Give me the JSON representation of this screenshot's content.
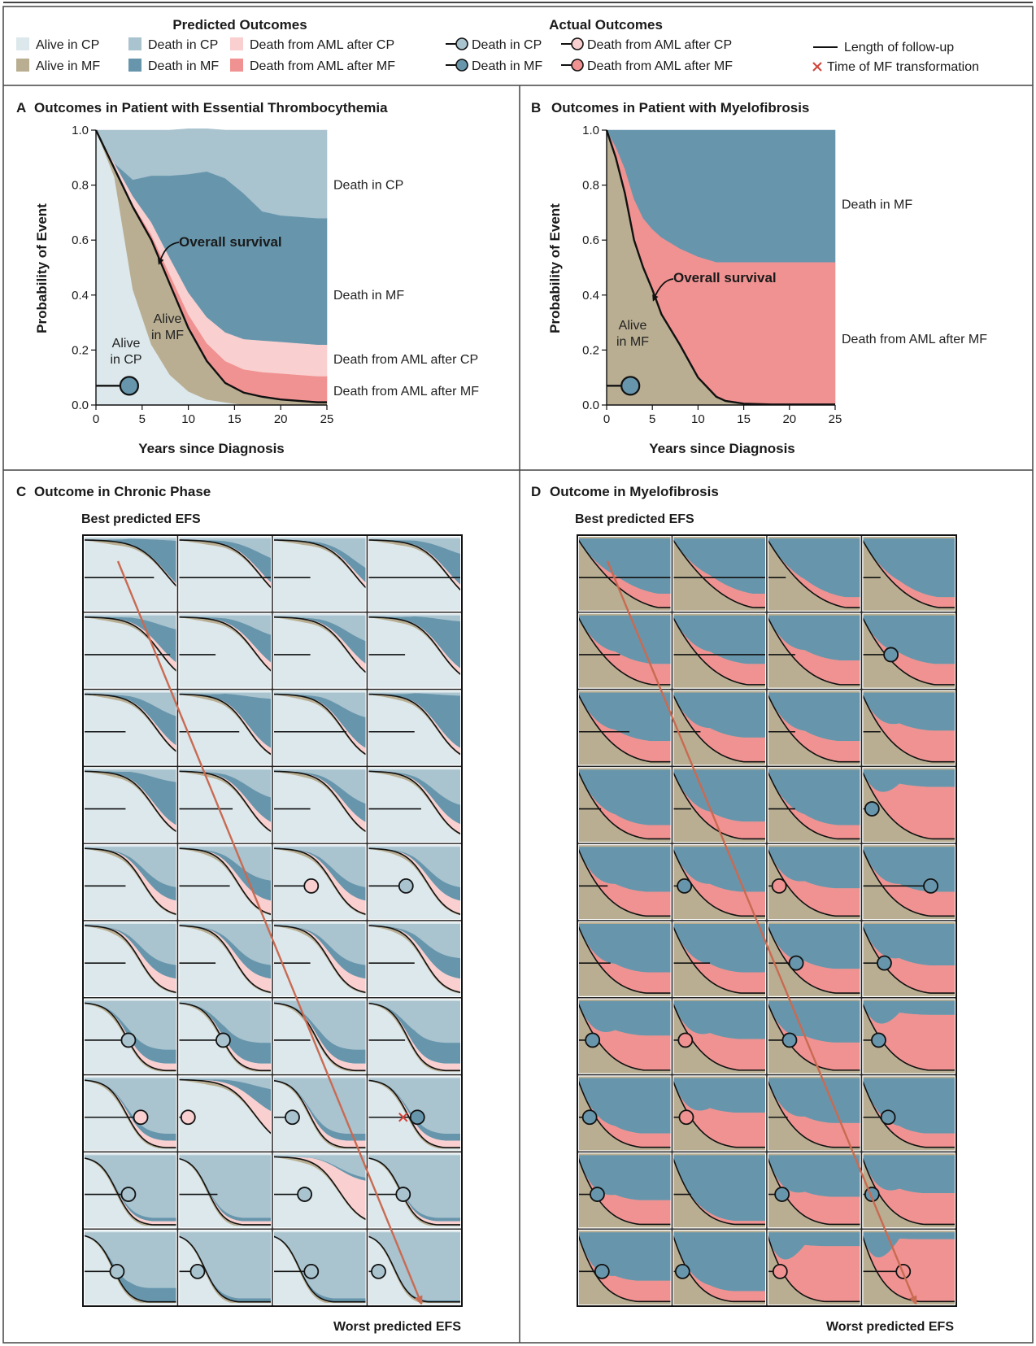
{
  "colors": {
    "alive_cp": "#dce8ec",
    "death_cp": "#a9c3cf",
    "death_aml_cp": "#f9cfcf",
    "alive_mf": "#b9ae92",
    "death_mf": "#6796ac",
    "death_aml_mf": "#f09291",
    "line": "#111111",
    "arrow": "#c96a52",
    "mf_x": "#d0443a"
  },
  "legend": {
    "predicted_title": "Predicted Outcomes",
    "actual_title": "Actual Outcomes",
    "predicted_items": [
      {
        "label": "Alive in CP",
        "key": "alive_cp"
      },
      {
        "label": "Death in CP",
        "key": "death_cp"
      },
      {
        "label": "Death from AML after CP",
        "key": "death_aml_cp"
      },
      {
        "label": "Alive in MF",
        "key": "alive_mf"
      },
      {
        "label": "Death in MF",
        "key": "death_mf"
      },
      {
        "label": "Death from AML after MF",
        "key": "death_aml_mf"
      }
    ],
    "actual_items": [
      {
        "label": "Death in CP",
        "key": "death_cp"
      },
      {
        "label": "Death from AML after CP",
        "key": "death_aml_cp"
      },
      {
        "label": "Death in MF",
        "key": "death_mf"
      },
      {
        "label": "Death from AML after MF",
        "key": "death_aml_mf"
      }
    ],
    "followup_label": "Length of follow-up",
    "mf_time_label": "Time of MF transformation"
  },
  "panels": {
    "A": {
      "letter": "A",
      "title": "Outcomes in Patient with Essential Thrombocythemia"
    },
    "B": {
      "letter": "B",
      "title": "Outcomes in Patient with Myelofibrosis"
    },
    "C": {
      "letter": "C",
      "title": "Outcome in Chronic Phase",
      "best": "Best predicted EFS",
      "worst": "Worst predicted EFS"
    },
    "D": {
      "letter": "D",
      "title": "Outcome in Myelofibrosis",
      "best": "Best predicted EFS",
      "worst": "Worst predicted EFS"
    }
  },
  "chart_data": [
    {
      "id": "A",
      "type": "area",
      "title": "Outcomes in Patient with Essential Thrombocythemia",
      "xlabel": "Years since Diagnosis",
      "ylabel": "Probability of Event",
      "xlim": [
        0,
        25
      ],
      "ylim": [
        0,
        1
      ],
      "xticks": [
        "0",
        "5",
        "10",
        "15",
        "20",
        "25"
      ],
      "yticks": [
        "0.0",
        "0.2",
        "0.4",
        "0.6",
        "0.8",
        "1.0"
      ],
      "x": [
        0,
        2,
        4,
        6,
        8,
        10,
        12,
        14,
        16,
        18,
        20,
        22,
        24,
        25
      ],
      "series": [
        {
          "name": "Alive in CP",
          "key": "alive_cp",
          "values": [
            1.0,
            0.83,
            0.42,
            0.22,
            0.11,
            0.05,
            0.02,
            0.01,
            0.0,
            0.0,
            0.0,
            0.0,
            0.0,
            0.0
          ]
        },
        {
          "name": "Alive in MF",
          "key": "alive_mf",
          "values": [
            0.0,
            0.03,
            0.3,
            0.38,
            0.33,
            0.23,
            0.14,
            0.07,
            0.045,
            0.03,
            0.02,
            0.015,
            0.01,
            0.01
          ]
        },
        {
          "name": "Death from AML after MF",
          "key": "death_aml_mf",
          "values": [
            0.0,
            0.005,
            0.01,
            0.02,
            0.035,
            0.05,
            0.065,
            0.08,
            0.085,
            0.09,
            0.095,
            0.095,
            0.095,
            0.095
          ]
        },
        {
          "name": "Death from AML after CP",
          "key": "death_aml_cp",
          "values": [
            0.0,
            0.015,
            0.03,
            0.045,
            0.06,
            0.08,
            0.095,
            0.105,
            0.11,
            0.115,
            0.115,
            0.115,
            0.115,
            0.115
          ]
        },
        {
          "name": "Death in MF",
          "key": "death_mf",
          "values": [
            0.0,
            0.0,
            0.06,
            0.17,
            0.3,
            0.43,
            0.53,
            0.56,
            0.53,
            0.47,
            0.46,
            0.46,
            0.46,
            0.46
          ]
        },
        {
          "name": "Death in CP",
          "key": "death_cp",
          "values": [
            0.0,
            0.12,
            0.18,
            0.165,
            0.165,
            0.165,
            0.155,
            0.175,
            0.23,
            0.295,
            0.31,
            0.315,
            0.32,
            0.32
          ]
        }
      ],
      "overall_survival": [
        1.0,
        0.86,
        0.72,
        0.6,
        0.44,
        0.28,
        0.16,
        0.08,
        0.045,
        0.03,
        0.02,
        0.015,
        0.01,
        0.01
      ],
      "labels": {
        "overall": "Overall survival",
        "alive_mf": [
          "Alive",
          "in MF"
        ],
        "alive_cp": [
          "Alive",
          "in CP"
        ]
      },
      "right_labels": [
        "Death in CP",
        "Death in MF",
        "Death from AML after CP",
        "Death from AML after MF"
      ],
      "patient": {
        "followup_years": 3.6,
        "event_year": 3.6,
        "event": "death_mf"
      }
    },
    {
      "id": "B",
      "type": "area",
      "title": "Outcomes in Patient with Myelofibrosis",
      "xlabel": "Years since Diagnosis",
      "ylabel": "Probability of Event",
      "xlim": [
        0,
        25
      ],
      "ylim": [
        0,
        1
      ],
      "xticks": [
        "0",
        "5",
        "10",
        "15",
        "20",
        "25"
      ],
      "yticks": [
        "0.0",
        "0.2",
        "0.4",
        "0.6",
        "0.8",
        "1.0"
      ],
      "x": [
        0,
        1,
        2,
        3,
        4,
        5,
        6,
        8,
        10,
        12,
        13,
        15,
        18,
        25
      ],
      "series": [
        {
          "name": "Alive in MF",
          "key": "alive_mf",
          "values": [
            1.0,
            0.9,
            0.77,
            0.6,
            0.5,
            0.42,
            0.33,
            0.22,
            0.1,
            0.03,
            0.015,
            0.005,
            0.002,
            0.002
          ]
        },
        {
          "name": "Death from AML after MF",
          "key": "death_aml_mf",
          "values": [
            0.0,
            0.04,
            0.09,
            0.15,
            0.18,
            0.22,
            0.28,
            0.35,
            0.44,
            0.49,
            0.505,
            0.515,
            0.518,
            0.518
          ]
        },
        {
          "name": "Death in MF",
          "key": "death_mf",
          "values": [
            0.0,
            0.06,
            0.14,
            0.25,
            0.32,
            0.36,
            0.39,
            0.43,
            0.46,
            0.48,
            0.48,
            0.48,
            0.48,
            0.48
          ]
        }
      ],
      "overall_survival": [
        1.0,
        0.9,
        0.77,
        0.6,
        0.5,
        0.42,
        0.33,
        0.22,
        0.1,
        0.03,
        0.015,
        0.005,
        0.002,
        0.002
      ],
      "labels": {
        "overall": "Overall survival",
        "alive_mf": [
          "Alive",
          "in MF"
        ]
      },
      "right_labels": [
        "Death in MF",
        "Death from AML after MF"
      ],
      "patient": {
        "followup_years": 2.6,
        "event_year": 2.6,
        "event": "death_mf"
      }
    },
    {
      "id": "C",
      "type": "area",
      "title": "Outcome in Chronic Phase",
      "layout": "small multiples 4 columns x 10 rows, ordered from best to worst predicted EFS",
      "rows": [
        [
          {
            "s": 0.1,
            "m": 0.9,
            "a": 0.05,
            "f": 0.75
          },
          {
            "s": 0.12,
            "m": 0.5,
            "a": 0.1,
            "f": 1.0
          },
          {
            "s": 0.12,
            "m": 0.3,
            "a": 0.1,
            "f": 0.4
          },
          {
            "s": 0.15,
            "m": 0.6,
            "a": 0.1,
            "f": 1.0
          }
        ],
        [
          {
            "s": 0.2,
            "m": 0.6,
            "a": 0.15,
            "f": 0.92
          },
          {
            "s": 0.2,
            "m": 0.5,
            "a": 0.15,
            "f": 0.4
          },
          {
            "s": 0.22,
            "m": 0.4,
            "a": 0.15,
            "f": 0.4
          },
          {
            "s": 0.25,
            "m": 0.8,
            "a": 0.1,
            "f": 0.4
          }
        ],
        [
          {
            "s": 0.25,
            "m": 0.5,
            "a": 0.1,
            "f": 0.45
          },
          {
            "s": 0.3,
            "m": 0.8,
            "a": 0.1,
            "f": 0.65
          },
          {
            "s": 0.3,
            "m": 0.5,
            "a": 0.1,
            "f": 0.78
          },
          {
            "s": 0.3,
            "m": 0.85,
            "a": 0.1,
            "f": 0.5
          }
        ],
        [
          {
            "s": 0.3,
            "m": 0.7,
            "a": 0.1,
            "f": 0.45
          },
          {
            "s": 0.3,
            "m": 0.4,
            "a": 0.15,
            "f": 0.58
          },
          {
            "s": 0.3,
            "m": 0.3,
            "a": 0.15,
            "f": 0.4
          },
          {
            "s": 0.35,
            "m": 0.3,
            "a": 0.15,
            "f": 0.57
          }
        ],
        [
          {
            "s": 0.45,
            "m": 0.2,
            "a": 0.2,
            "f": 0.45
          },
          {
            "s": 0.45,
            "m": 0.3,
            "a": 0.2,
            "f": 0.55
          },
          {
            "s": 0.45,
            "m": 0.2,
            "a": 0.2,
            "e": "aml_cp",
            "ex": 0.35
          },
          {
            "s": 0.45,
            "m": 0.2,
            "a": 0.2,
            "e": "cp",
            "ex": 0.35
          }
        ],
        [
          {
            "s": 0.5,
            "m": 0.2,
            "a": 0.2,
            "f": 0.45
          },
          {
            "s": 0.5,
            "m": 0.2,
            "a": 0.2,
            "f": 0.4
          },
          {
            "s": 0.5,
            "m": 0.2,
            "a": 0.2,
            "f": 0.4
          },
          {
            "s": 0.5,
            "m": 0.3,
            "a": 0.2,
            "f": 0.5
          }
        ],
        [
          {
            "s": 0.7,
            "m": 0.2,
            "a": 0.1,
            "e": "cp",
            "ex": 0.42
          },
          {
            "s": 0.7,
            "m": 0.3,
            "a": 0.1,
            "e": "cp",
            "ex": 0.42
          },
          {
            "s": 0.7,
            "m": 0.2,
            "a": 0.1,
            "f": 0.4
          },
          {
            "s": 0.75,
            "m": 0.3,
            "a": 0.1,
            "f": 0.4
          }
        ],
        [
          {
            "s": 0.7,
            "m": 0.1,
            "a": 0.1,
            "e": "aml_cp",
            "ex": 0.55
          },
          {
            "s": 0.2,
            "m": 0.4,
            "a": 0.4,
            "e": "aml_cp",
            "ex": 0.05
          },
          {
            "s": 0.8,
            "m": 0.1,
            "a": 0.1,
            "e": "cp",
            "ex": 0.15
          },
          {
            "s": 0.75,
            "m": 0.1,
            "a": 0.1,
            "e": "mf",
            "ex": 0.47,
            "x": 0.38
          }
        ],
        [
          {
            "s": 0.85,
            "m": 0.05,
            "a": 0.05,
            "e": "cp",
            "ex": 0.42
          },
          {
            "s": 0.9,
            "m": 0.05,
            "a": 0.05,
            "f": 0.42
          },
          {
            "s": 0.35,
            "m": 0.05,
            "a": 0.6,
            "e": "cp",
            "ex": 0.28
          },
          {
            "s": 0.85,
            "m": 0.05,
            "a": 0.05,
            "e": "cp",
            "ex": 0.32
          }
        ],
        [
          {
            "s": 0.9,
            "m": 0.2,
            "a": 0.0,
            "e": "cp",
            "ex": 0.3
          },
          {
            "s": 0.95,
            "m": 0.05,
            "a": 0.0,
            "e": "cp",
            "ex": 0.15
          },
          {
            "s": 0.95,
            "m": 0.05,
            "a": 0.0,
            "e": "cp",
            "ex": 0.35
          },
          {
            "s": 0.95,
            "m": 0.02,
            "a": 0.0,
            "e": "cp",
            "ex": 0.06
          }
        ]
      ]
    },
    {
      "id": "D",
      "type": "area",
      "title": "Outcome in Myelofibrosis",
      "layout": "small multiples 4 columns x 10 rows, ordered from best to worst predicted EFS",
      "rows": [
        [
          {
            "s": 0.2,
            "a": 0.2,
            "f": 1.0
          },
          {
            "s": 0.2,
            "a": 0.2,
            "f": 1.0
          },
          {
            "s": 0.25,
            "a": 0.15,
            "f": 0.2
          },
          {
            "s": 0.3,
            "a": 0.15,
            "f": 0.2
          }
        ],
        [
          {
            "s": 0.35,
            "a": 0.3,
            "f": 0.45
          },
          {
            "s": 0.35,
            "a": 0.3,
            "f": 1.25
          },
          {
            "s": 0.4,
            "a": 0.35,
            "f": 0.3
          },
          {
            "s": 0.4,
            "a": 0.3,
            "e": "mf",
            "ex": 0.25
          }
        ],
        [
          {
            "s": 0.4,
            "a": 0.3,
            "f": 0.55
          },
          {
            "s": 0.45,
            "a": 0.35,
            "f": 0.3
          },
          {
            "s": 0.45,
            "a": 0.3,
            "f": 0.3
          },
          {
            "s": 0.5,
            "a": 0.45,
            "f": 0.2
          }
        ],
        [
          {
            "s": 0.5,
            "a": 0.2,
            "f": 0.25
          },
          {
            "s": 0.5,
            "a": 0.25,
            "f": 0.2
          },
          {
            "s": 0.5,
            "a": 0.2,
            "f": 0.3
          },
          {
            "s": 0.5,
            "a": 0.75,
            "e": "mf",
            "ex": 0.05
          }
        ],
        [
          {
            "s": 0.55,
            "a": 0.35,
            "f": 0.32
          },
          {
            "s": 0.55,
            "a": 0.35,
            "e": "mf",
            "ex": 0.07
          },
          {
            "s": 0.55,
            "a": 0.4,
            "e": "aml_mf",
            "ex": 0.07
          },
          {
            "s": 0.55,
            "a": 0.35,
            "e": "mf",
            "ex": 0.67
          }
        ],
        [
          {
            "s": 0.55,
            "a": 0.3,
            "f": 0.35
          },
          {
            "s": 0.55,
            "a": 0.3,
            "f": 0.4
          },
          {
            "s": 0.55,
            "a": 0.35,
            "e": "mf",
            "ex": 0.25
          },
          {
            "s": 0.55,
            "a": 0.4,
            "e": "mf",
            "ex": 0.18
          }
        ],
        [
          {
            "s": 0.6,
            "a": 0.5,
            "e": "mf",
            "ex": 0.1
          },
          {
            "s": 0.6,
            "a": 0.45,
            "e": "aml_mf",
            "ex": 0.08
          },
          {
            "s": 0.6,
            "a": 0.4,
            "e": "mf",
            "ex": 0.18
          },
          {
            "s": 0.6,
            "a": 0.8,
            "e": "mf",
            "ex": 0.12
          }
        ],
        [
          {
            "s": 0.7,
            "a": 0.2,
            "e": "mf",
            "ex": 0.07
          },
          {
            "s": 0.7,
            "a": 0.5,
            "e": "aml_mf",
            "ex": 0.09
          },
          {
            "s": 0.65,
            "a": 0.35,
            "f": 0.22
          },
          {
            "s": 0.7,
            "a": 0.2,
            "e": "mf",
            "ex": 0.22
          }
        ],
        [
          {
            "s": 0.75,
            "a": 0.35,
            "e": "mf",
            "ex": 0.15
          },
          {
            "s": 0.75,
            "a": 0.05,
            "f": 0.2
          },
          {
            "s": 0.75,
            "a": 0.4,
            "e": "mf",
            "ex": 0.1
          },
          {
            "s": 0.75,
            "a": 0.45,
            "e": "mf",
            "ex": 0.05
          }
        ],
        [
          {
            "s": 0.85,
            "a": 0.3,
            "e": "mf",
            "ex": 0.2
          },
          {
            "s": 0.85,
            "a": 0.15,
            "e": "mf",
            "ex": 0.05
          },
          {
            "s": 0.95,
            "a": 0.8,
            "e": "aml_mf",
            "ex": 0.08
          },
          {
            "s": 0.95,
            "a": 0.9,
            "e": "aml_mf",
            "ex": 0.38
          }
        ]
      ]
    }
  ]
}
